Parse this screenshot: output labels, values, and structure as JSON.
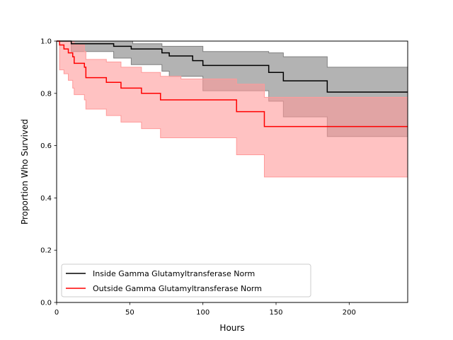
{
  "chart_data": {
    "type": "line",
    "xlabel": "Hours",
    "ylabel": "Proportion Who Survived",
    "xlim": [
      0,
      240
    ],
    "ylim": [
      0.0,
      1.0
    ],
    "x_ticks": [
      0,
      50,
      100,
      150,
      200
    ],
    "x_tick_labels": [
      "0",
      "50",
      "100",
      "150",
      "200"
    ],
    "y_ticks": [
      0.0,
      0.2,
      0.4,
      0.6,
      0.8,
      1.0
    ],
    "y_tick_labels": [
      "0.0",
      "0.2",
      "0.4",
      "0.6",
      "0.8",
      "1.0"
    ],
    "grid": false,
    "legend_position": "lower-left",
    "series": [
      {
        "name": "Inside Gamma Glutamyltransferase Norm",
        "color": "#000000",
        "band_color": "#808080",
        "steps": [
          [
            0,
            1.0
          ],
          [
            10,
            0.99
          ],
          [
            39,
            0.98
          ],
          [
            51,
            0.97
          ],
          [
            72,
            0.955
          ],
          [
            77,
            0.943
          ],
          [
            93,
            0.925
          ],
          [
            100,
            0.907
          ],
          [
            145,
            0.88
          ],
          [
            155,
            0.848
          ],
          [
            185,
            0.805
          ],
          [
            240,
            0.805
          ]
        ],
        "ci_upper": [
          [
            0,
            1.0
          ],
          [
            40,
            1.0
          ],
          [
            52,
            0.99
          ],
          [
            72,
            0.98
          ],
          [
            100,
            0.96
          ],
          [
            145,
            0.955
          ],
          [
            155,
            0.94
          ],
          [
            185,
            0.9
          ],
          [
            240,
            0.9
          ]
        ],
        "ci_lower": [
          [
            0,
            1.0
          ],
          [
            10,
            0.96
          ],
          [
            39,
            0.935
          ],
          [
            51,
            0.91
          ],
          [
            72,
            0.885
          ],
          [
            77,
            0.865
          ],
          [
            100,
            0.81
          ],
          [
            145,
            0.77
          ],
          [
            155,
            0.71
          ],
          [
            185,
            0.635
          ],
          [
            240,
            0.635
          ]
        ]
      },
      {
        "name": "Outside Gamma Glutamyltransferase Norm",
        "color": "#ff0000",
        "band_color": "#ff9a9a",
        "steps": [
          [
            0,
            1.0
          ],
          [
            2,
            0.985
          ],
          [
            5,
            0.97
          ],
          [
            8,
            0.955
          ],
          [
            11,
            0.94
          ],
          [
            12,
            0.915
          ],
          [
            19,
            0.9
          ],
          [
            20,
            0.86
          ],
          [
            34,
            0.842
          ],
          [
            44,
            0.82
          ],
          [
            58,
            0.8
          ],
          [
            71,
            0.775
          ],
          [
            123,
            0.73
          ],
          [
            142,
            0.673
          ],
          [
            240,
            0.673
          ]
        ],
        "ci_upper": [
          [
            0,
            1.0
          ],
          [
            9,
            1.0
          ],
          [
            12,
            0.985
          ],
          [
            19,
            0.96
          ],
          [
            20,
            0.93
          ],
          [
            34,
            0.92
          ],
          [
            44,
            0.9
          ],
          [
            58,
            0.88
          ],
          [
            71,
            0.865
          ],
          [
            85,
            0.855
          ],
          [
            123,
            0.835
          ],
          [
            142,
            0.785
          ],
          [
            240,
            0.785
          ]
        ],
        "ci_lower": [
          [
            0,
            1.0
          ],
          [
            2,
            0.89
          ],
          [
            5,
            0.875
          ],
          [
            8,
            0.85
          ],
          [
            11,
            0.82
          ],
          [
            12,
            0.795
          ],
          [
            19,
            0.775
          ],
          [
            20,
            0.74
          ],
          [
            34,
            0.715
          ],
          [
            44,
            0.69
          ],
          [
            58,
            0.665
          ],
          [
            71,
            0.63
          ],
          [
            123,
            0.565
          ],
          [
            142,
            0.48
          ],
          [
            240,
            0.48
          ]
        ]
      }
    ]
  }
}
